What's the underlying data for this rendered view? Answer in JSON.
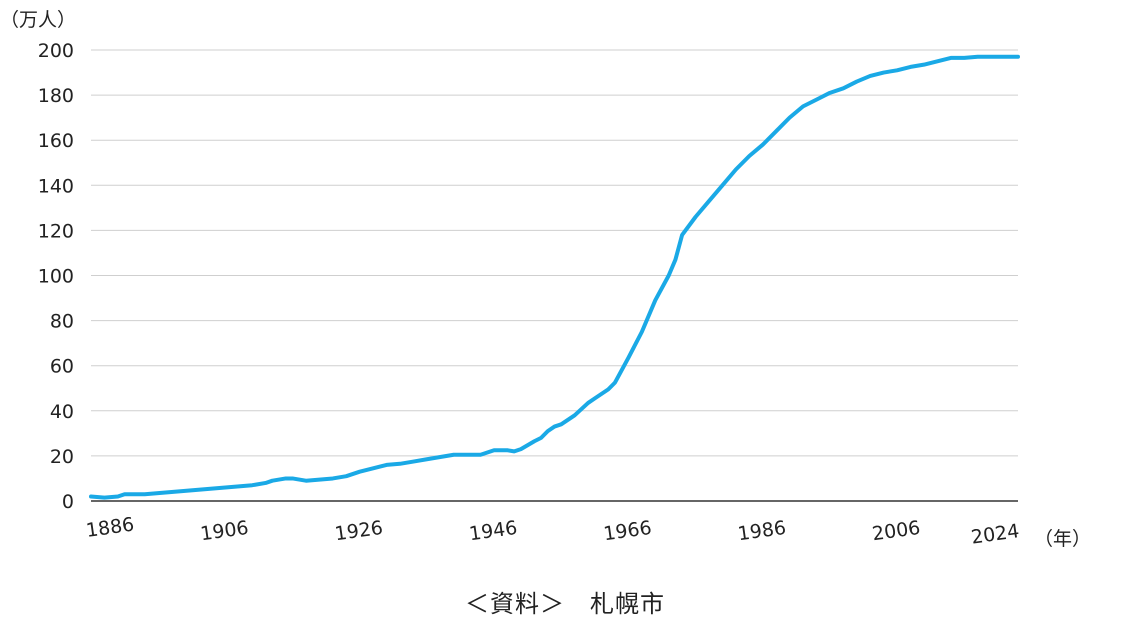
{
  "chart_data": {
    "type": "line",
    "y_unit_label": "（万人）",
    "x_unit_label": "（年）",
    "xlim": [
      1886,
      2024
    ],
    "ylim": [
      0,
      200
    ],
    "yticks": [
      "0",
      "20",
      "40",
      "60",
      "80",
      "100",
      "120",
      "140",
      "160",
      "180",
      "200"
    ],
    "xticks": [
      "1886",
      "1906",
      "1926",
      "1946",
      "1966",
      "1986",
      "2006",
      "2024"
    ],
    "grid": true,
    "line_color": "#1aa9e6",
    "series": [
      {
        "x": [
          1886,
          1888,
          1890,
          1891,
          1892,
          1894,
          1896,
          1898,
          1900,
          1902,
          1904,
          1906,
          1908,
          1910,
          1912,
          1913,
          1914,
          1915,
          1916,
          1918,
          1920,
          1922,
          1924,
          1926,
          1928,
          1930,
          1932,
          1934,
          1936,
          1938,
          1940,
          1942,
          1944,
          1945,
          1946,
          1948,
          1949,
          1950,
          1952,
          1953,
          1954,
          1955,
          1956,
          1958,
          1960,
          1961,
          1962,
          1963,
          1964,
          1966,
          1968,
          1970,
          1972,
          1973,
          1974,
          1976,
          1978,
          1980,
          1982,
          1984,
          1986,
          1988,
          1990,
          1992,
          1994,
          1996,
          1998,
          2000,
          2002,
          2004,
          2006,
          2008,
          2010,
          2012,
          2014,
          2016,
          2018,
          2020,
          2022,
          2024
        ],
        "y": [
          2,
          1.5,
          2,
          3,
          3,
          3,
          3.5,
          4,
          4.5,
          5,
          5.5,
          6,
          6.5,
          7,
          8,
          9,
          9.5,
          10,
          10,
          9,
          9.5,
          10,
          11,
          13,
          14.5,
          16,
          16.5,
          17.5,
          18.5,
          19.5,
          20.5,
          20.5,
          20.5,
          21.5,
          22.5,
          22.5,
          22,
          23,
          26.5,
          28,
          31,
          33,
          34,
          38,
          43.5,
          45.5,
          47.5,
          49.5,
          52.5,
          63.5,
          75,
          89,
          100,
          107,
          118,
          126,
          133,
          140,
          147,
          153,
          158,
          164,
          170,
          175,
          178,
          181,
          183,
          186,
          188.5,
          190,
          191,
          192.5,
          193.5,
          195,
          196.5,
          196.5,
          197,
          197,
          197,
          197
        ]
      }
    ]
  },
  "source_text": "＜資料＞　札幌市"
}
